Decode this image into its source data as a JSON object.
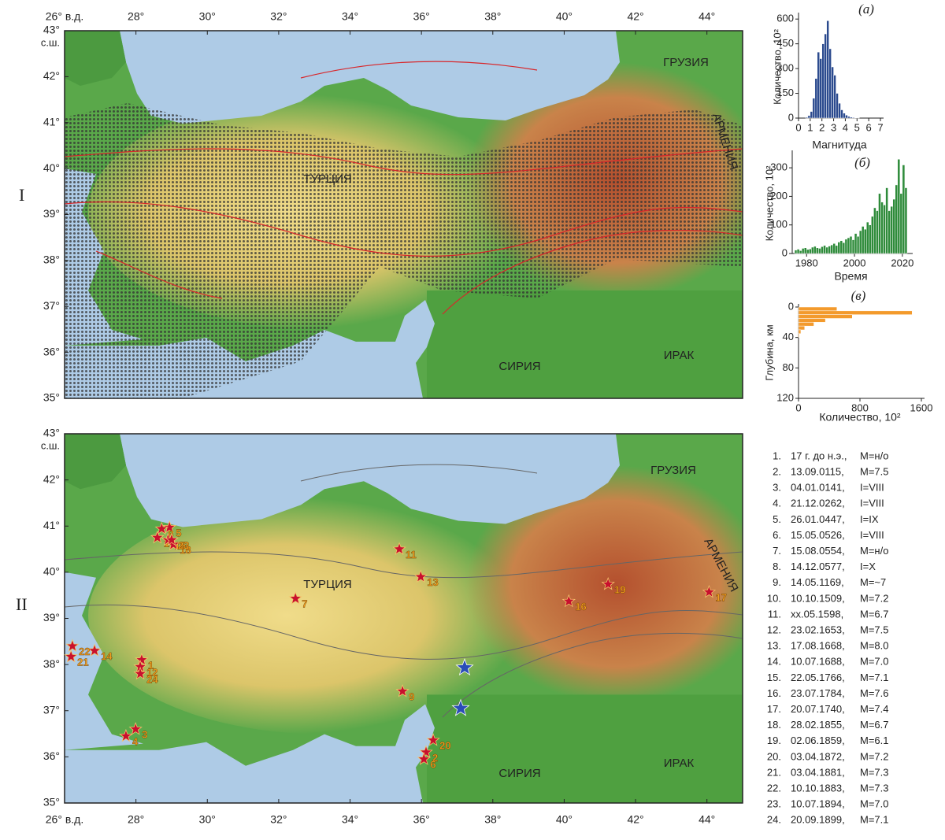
{
  "panels": [
    "I",
    "II"
  ],
  "map": {
    "xlim": [
      26,
      45
    ],
    "ylim": [
      35,
      43
    ],
    "xticks": [
      {
        "value": 26,
        "label": "26° в.д."
      },
      {
        "value": 28,
        "label": "28°"
      },
      {
        "value": 30,
        "label": "30°"
      },
      {
        "value": 32,
        "label": "32°"
      },
      {
        "value": 34,
        "label": "34°"
      },
      {
        "value": 36,
        "label": "36°"
      },
      {
        "value": 38,
        "label": "38°"
      },
      {
        "value": 40,
        "label": "40°"
      },
      {
        "value": 42,
        "label": "42°"
      },
      {
        "value": 44,
        "label": "44°"
      }
    ],
    "yticks": [
      {
        "value": 43,
        "label": "43°"
      },
      {
        "value": 42,
        "label": "42°"
      },
      {
        "value": 41,
        "label": "41°"
      },
      {
        "value": 40,
        "label": "40°"
      },
      {
        "value": 39,
        "label": "39°"
      },
      {
        "value": 38,
        "label": "38°"
      },
      {
        "value": 37,
        "label": "37°"
      },
      {
        "value": 36,
        "label": "36°"
      },
      {
        "value": 35,
        "label": "35°"
      }
    ],
    "lat_unit": "с.ш.",
    "country_labels": [
      "ТУРЦИЯ",
      "ГРУЗИЯ",
      "АРМЕНИЯ",
      "СИРИЯ",
      "ИРАК"
    ],
    "historical_events": [
      {
        "label": "1",
        "lon": 28.16,
        "lat": 38.1
      },
      {
        "label": "2",
        "lon": 36.13,
        "lat": 36.1
      },
      {
        "label": "3",
        "lon": 27.99,
        "lat": 36.6
      },
      {
        "label": "4",
        "lon": 27.72,
        "lat": 36.45
      },
      {
        "label": "5",
        "lon": 28.94,
        "lat": 40.97
      },
      {
        "label": "6",
        "lon": 36.07,
        "lat": 35.95
      },
      {
        "label": "7",
        "lon": 32.47,
        "lat": 39.43
      },
      {
        "label": "8",
        "lon": 28.72,
        "lat": 40.94
      },
      {
        "label": "9",
        "lon": 35.47,
        "lat": 37.42
      },
      {
        "label": "10",
        "lon": 28.6,
        "lat": 40.75
      },
      {
        "label": "11",
        "lon": 35.38,
        "lat": 40.5
      },
      {
        "label": "12",
        "lon": 28.12,
        "lat": 37.95
      },
      {
        "label": "13",
        "lon": 35.98,
        "lat": 39.9
      },
      {
        "label": "14",
        "lon": 26.84,
        "lat": 38.3
      },
      {
        "label": "15",
        "lon": 28.9,
        "lat": 40.7
      },
      {
        "label": "16",
        "lon": 40.13,
        "lat": 39.37
      },
      {
        "label": "17",
        "lon": 44.06,
        "lat": 39.57
      },
      {
        "label": "18",
        "lon": 29.05,
        "lat": 40.6
      },
      {
        "label": "19",
        "lon": 41.23,
        "lat": 39.74
      },
      {
        "label": "20",
        "lon": 36.33,
        "lat": 36.36
      },
      {
        "label": "21",
        "lon": 26.18,
        "lat": 38.17
      },
      {
        "label": "22",
        "lon": 26.22,
        "lat": 38.4
      },
      {
        "label": "23",
        "lon": 29.0,
        "lat": 40.7
      },
      {
        "label": "24",
        "lon": 28.12,
        "lat": 37.8
      }
    ],
    "recent_events": [
      {
        "lon": 37.21,
        "lat": 37.93
      },
      {
        "lon": 37.1,
        "lat": 37.05
      }
    ]
  },
  "events": {
    "rows": [
      [
        "1.",
        "17 г. до н.э.,",
        "M=н/о"
      ],
      [
        "2.",
        "13.09.0115,",
        "M=7.5"
      ],
      [
        "3.",
        "04.01.0141,",
        "I=VIII"
      ],
      [
        "4.",
        "21.12.0262,",
        "I=VIII"
      ],
      [
        "5.",
        "26.01.0447,",
        "I=IX"
      ],
      [
        "6.",
        "15.05.0526,",
        "I=VIII"
      ],
      [
        "7.",
        "15.08.0554,",
        "M=н/о"
      ],
      [
        "8.",
        "14.12.0577,",
        "I=X"
      ],
      [
        "9.",
        "14.05.1169,",
        "M=~7"
      ],
      [
        "10.",
        "10.10.1509,",
        "M=7.2"
      ],
      [
        "11.",
        "xx.05.1598,",
        "M=6.7"
      ],
      [
        "12.",
        "23.02.1653,",
        "M=7.5"
      ],
      [
        "13.",
        "17.08.1668,",
        "M=8.0"
      ],
      [
        "14.",
        "10.07.1688,",
        "M=7.0"
      ],
      [
        "15.",
        "22.05.1766,",
        "M=7.1"
      ],
      [
        "16.",
        "23.07.1784,",
        "M=7.6"
      ],
      [
        "17.",
        "20.07.1740,",
        "M=7.4"
      ],
      [
        "18.",
        "28.02.1855,",
        "M=6.7"
      ],
      [
        "19.",
        "02.06.1859,",
        "M=6.1"
      ],
      [
        "20.",
        "03.04.1872,",
        "M=7.2"
      ],
      [
        "21.",
        "03.04.1881,",
        "M=7.3"
      ],
      [
        "22.",
        "10.10.1883,",
        "M=7.3"
      ],
      [
        "23.",
        "10.07.1894,",
        "M=7.0"
      ],
      [
        "24.",
        "20.09.1899,",
        "M=7.1"
      ]
    ]
  },
  "chart_data": [
    {
      "type": "histogram",
      "title": "(а)",
      "x_label": "Магнитуда",
      "y_label": "Количество, 10²",
      "color": "#2b4a8e",
      "bins": [
        0.6,
        0.8,
        1,
        1.2,
        1.4,
        1.6,
        1.8,
        2,
        2.2,
        2.4,
        2.6,
        2.8,
        3,
        3.2,
        3.4,
        3.6,
        3.8,
        4,
        4.2,
        4.4,
        4.6,
        4.8,
        5,
        5.2
      ],
      "values": [
        5,
        15,
        40,
        120,
        240,
        400,
        360,
        450,
        510,
        590,
        420,
        310,
        260,
        150,
        90,
        50,
        30,
        18,
        10,
        6,
        4,
        2,
        1
      ],
      "xlim": [
        0,
        7
      ],
      "ylim": [
        0,
        620
      ],
      "xticks": [
        0,
        1,
        2,
        3,
        4,
        5,
        6,
        7
      ],
      "yticks": [
        0,
        150,
        300,
        450,
        600
      ]
    },
    {
      "type": "histogram",
      "title": "(б)",
      "x_label": "Время",
      "y_label": "Количество, 10²",
      "color": "#2e8b3a",
      "bins": [
        1975,
        1976,
        1977,
        1978,
        1979,
        1980,
        1981,
        1982,
        1983,
        1984,
        1985,
        1986,
        1987,
        1988,
        1989,
        1990,
        1991,
        1992,
        1993,
        1994,
        1995,
        1996,
        1997,
        1998,
        1999,
        2000,
        2001,
        2002,
        2003,
        2004,
        2005,
        2006,
        2007,
        2008,
        2009,
        2010,
        2011,
        2012,
        2013,
        2014,
        2015,
        2016,
        2017,
        2018,
        2019,
        2020,
        2021,
        2022
      ],
      "values": [
        12,
        15,
        10,
        18,
        20,
        14,
        16,
        22,
        25,
        20,
        18,
        24,
        28,
        22,
        26,
        30,
        35,
        28,
        40,
        45,
        38,
        50,
        55,
        60,
        48,
        70,
        60,
        80,
        95,
        85,
        110,
        100,
        130,
        160,
        150,
        210,
        180,
        170,
        230,
        150,
        165,
        190,
        240,
        330,
        210,
        310,
        230
      ],
      "xlim": [
        1974,
        2023
      ],
      "ylim": [
        0,
        350
      ],
      "xticks": [
        1980,
        2000,
        2020
      ],
      "yticks": [
        0,
        100,
        200,
        300
      ]
    },
    {
      "type": "histogram",
      "orientation": "horizontal",
      "y_inverted": true,
      "title": "(в)",
      "x_label": "Количество, 10²",
      "y_label": "Глубина, км",
      "color": "#f39a2c",
      "bins": [
        0,
        5,
        10,
        15,
        20,
        25,
        30,
        35,
        40
      ],
      "values": [
        500,
        1480,
        700,
        350,
        200,
        80,
        30,
        10
      ],
      "xlim": [
        0,
        1600
      ],
      "ylim": [
        0,
        120
      ],
      "xticks": [
        0,
        800,
        1600
      ],
      "yticks": [
        0,
        40,
        80,
        120
      ]
    }
  ]
}
